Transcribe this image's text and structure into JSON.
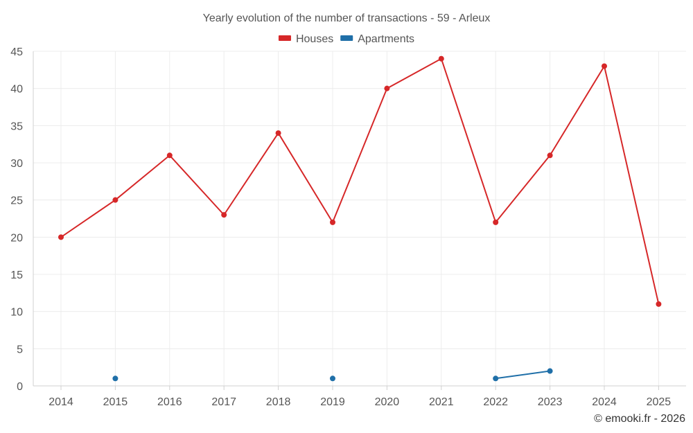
{
  "chart_data": {
    "type": "line",
    "title": "Yearly evolution of the number of transactions - 59 - Arleux",
    "xlabel": "",
    "ylabel": "",
    "categories": [
      "2014",
      "2015",
      "2016",
      "2017",
      "2018",
      "2019",
      "2020",
      "2021",
      "2022",
      "2023",
      "2024",
      "2025"
    ],
    "ylim": [
      0,
      45
    ],
    "yticks": [
      0,
      5,
      10,
      15,
      20,
      25,
      30,
      35,
      40,
      45
    ],
    "grid": true,
    "legend_position": "top-center",
    "series": [
      {
        "name": "Houses",
        "color": "#d62728",
        "values": [
          20,
          25,
          31,
          23,
          34,
          22,
          40,
          44,
          22,
          31,
          43,
          11
        ]
      },
      {
        "name": "Apartments",
        "color": "#1f6fa8",
        "values": [
          null,
          1,
          null,
          null,
          null,
          1,
          null,
          null,
          1,
          2,
          null,
          null
        ]
      }
    ],
    "credit": "© emooki.fr - 2026"
  }
}
